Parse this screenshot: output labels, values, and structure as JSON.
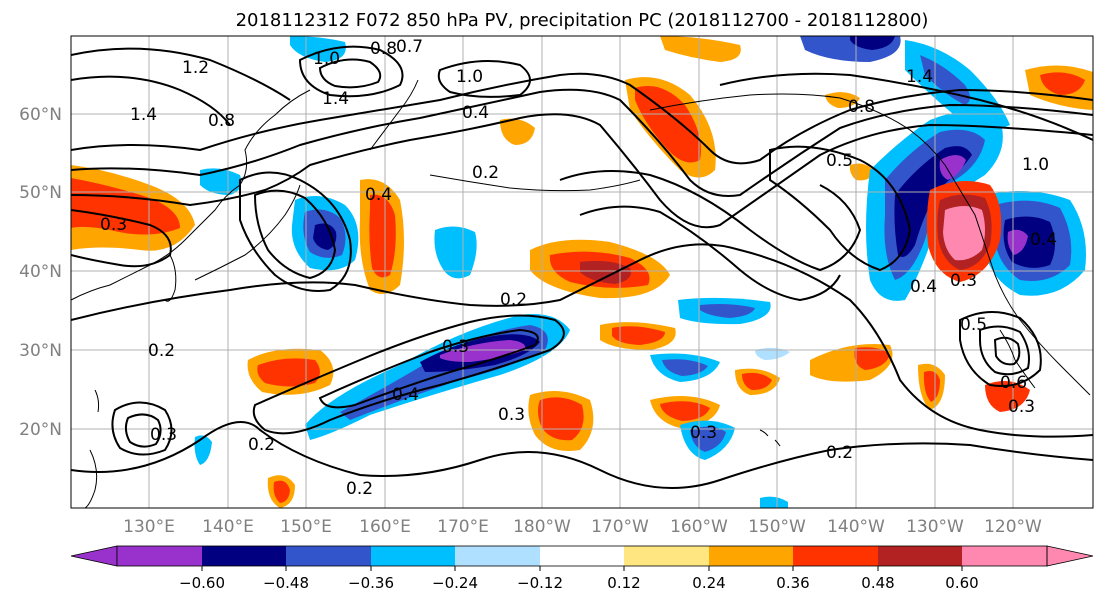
{
  "title": "2018112312 F072 850 hPa PV, precipitation PC (2018112700 - 2018112800)",
  "map": {
    "longitude_labels": [
      "130°E",
      "140°E",
      "150°E",
      "160°E",
      "170°E",
      "180°W",
      "170°W",
      "160°W",
      "150°W",
      "140°W",
      "130°W",
      "120°W"
    ],
    "latitude_labels": [
      "20°N",
      "30°N",
      "40°N",
      "50°N",
      "60°N"
    ],
    "gridlines": true,
    "grid_color": "#b0b0b0",
    "coastline_color": "#000000",
    "contour_labels": [
      "1.2",
      "1.0",
      "0.8",
      "0.7",
      "1.0",
      "1.4",
      "1.4",
      "0.8",
      "0.4",
      "0.2",
      "1.0",
      "0.8",
      "1.4",
      "0.5",
      "0.4",
      "0.3",
      "0.2",
      "0.3",
      "0.4",
      "0.3",
      "0.2",
      "0.2",
      "0.2",
      "0.3",
      "0.3",
      "0.2",
      "0.5",
      "0.6",
      "0.3",
      "0.3",
      "0.4",
      "0.4"
    ]
  },
  "colorbar": {
    "ticks": [
      "−0.60",
      "−0.48",
      "−0.36",
      "−0.24",
      "−0.12",
      "0.12",
      "0.24",
      "0.36",
      "0.48",
      "0.60"
    ],
    "colors": [
      "#9932cc",
      "#000080",
      "#3355cc",
      "#00bfff",
      "#b0e0ff",
      "#ffffff",
      "#ffe680",
      "#ffa500",
      "#ff3300",
      "#b22222",
      "#ff88b0",
      "#ff88b0"
    ],
    "extend": "both"
  }
}
